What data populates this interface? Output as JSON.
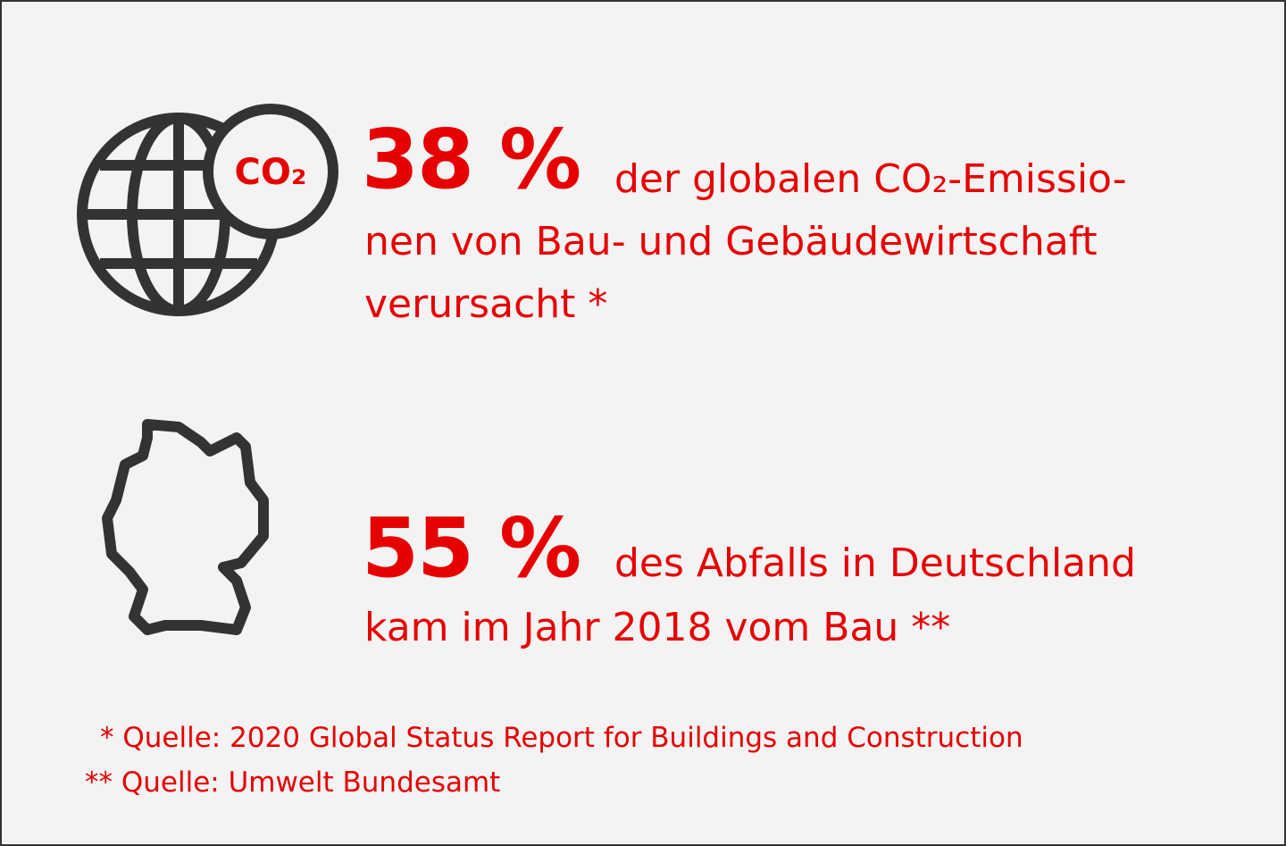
{
  "stats": [
    {
      "value": "38 %",
      "icon_label": "CO₂",
      "lines": [
        "der globalen CO₂-Emissio-",
        "nen von Bau- und Gebäudewirtschaft",
        "verursacht *"
      ]
    },
    {
      "value": "55 %",
      "lines": [
        "des Abfalls in Deutschland",
        "kam im Jahr 2018 vom Bau **"
      ]
    }
  ],
  "footnotes": [
    "* Quelle: 2020 Global Status Report for Buildings and Construction",
    "** Quelle: Umwelt Bundesamt"
  ]
}
